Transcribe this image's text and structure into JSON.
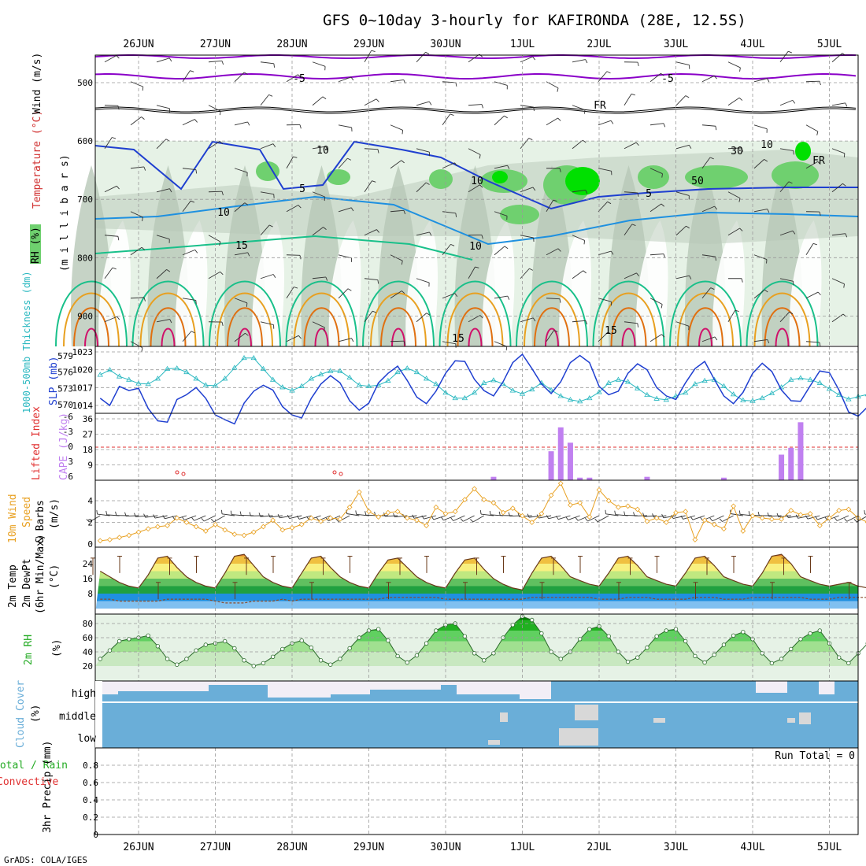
{
  "title": "GFS 0~10day 3-hourly for KAFIRONDA (28E, 12.5S)",
  "credit": "GrADS: COLA/IGES",
  "dates": [
    "26JUN",
    "27JUN",
    "28JUN",
    "29JUN",
    "30JUN",
    "1JUL",
    "2JUL",
    "3JUL",
    "4JUL",
    "5JUL"
  ],
  "colors": {
    "purple": "#8a00c8",
    "blue_dark": "#1f3fd0",
    "blue_mid": "#1e90e0",
    "teal": "#19c08a",
    "orange": "#e8a020",
    "orange_dark": "#e07010",
    "magenta": "#d0106a",
    "rh_light": "#e6f2e6",
    "rh_gray": "#b8c8b8",
    "rh_green": "#6fd06f",
    "rh_bright": "#00e000",
    "slp": "#1f3fd0",
    "thick": "#2ab8c0",
    "cape": "#c080f0",
    "li": "#e03030",
    "wind10": "#e8a020",
    "barb": "#6a4a2a",
    "cloud": "#6aaed8",
    "cloud_gray": "#d8d8d8"
  },
  "panel_labels": {
    "upper": {
      "wind": "Wind (m/s)",
      "temp": "Temperature (°C)",
      "rh": "RH (%)",
      "mb": "(m i l l i b a r s)"
    },
    "slp": {
      "thick": "1000-500mb Thickness (dm)",
      "slp": "SLP (mb)"
    },
    "cape": {
      "li": "Lifted Index",
      "cape": "CAPE (J/kg)"
    },
    "wind10": {
      "l1": "10m Wind",
      "l2": "Speed",
      "l3": "& Barbs",
      "l4": "(m/s)"
    },
    "temp2m": {
      "l1": "2m Temp",
      "l2": "2m DewPt",
      "l3": "(6hr Min/Max)",
      "l4": "(°C)"
    },
    "rh2m": {
      "l1": "2m RH",
      "l2": "(%)"
    },
    "cloud": {
      "l1": "Cloud Cover",
      "l2": "(%)"
    },
    "precip": {
      "l1": "Total / Rain",
      "l2": "Convective",
      "l3": "3hr Precip (mm)"
    }
  },
  "upper_levels": [
    "500",
    "600",
    "700",
    "800",
    "900"
  ],
  "contour_labels": [
    "-5",
    "-5",
    "FR",
    "FR",
    "5",
    "5",
    "10",
    "10",
    "15",
    "15",
    "15",
    "10",
    "10",
    "30",
    "50",
    "10"
  ],
  "slp_ticks": [
    "1023",
    "1020",
    "1017",
    "1014"
  ],
  "thick_ticks": [
    "579",
    "576",
    "573",
    "570"
  ],
  "li_ticks": [
    "-6",
    "-3",
    "0",
    "3",
    "6"
  ],
  "cape_ticks": [
    "36",
    "27",
    "18",
    "9"
  ],
  "wind10_ticks": [
    "4",
    "2",
    "0"
  ],
  "temp_ticks": [
    "24",
    "16",
    "8"
  ],
  "rh_ticks": [
    "80",
    "60",
    "40",
    "20"
  ],
  "cloud_levels": [
    "high",
    "middle",
    "low"
  ],
  "precip_ticks": [
    "0.8",
    "0.6",
    "0.4",
    "0.2",
    "0"
  ],
  "run_total": "Run Total = 0",
  "chart_data": [
    {
      "type": "line",
      "title": "SLP (mb)",
      "ylim": [
        1012,
        1023.5
      ],
      "x_step_hours": 3,
      "start": "25JUN 12Z",
      "values": [
        1015.2,
        1014,
        1017.2,
        1016.5,
        1016.9,
        1013.5,
        1011.4,
        1011.2,
        1015,
        1015.8,
        1017,
        1015.2,
        1012.4,
        1011.6,
        1010.9,
        1014.4,
        1016.4,
        1017.4,
        1016.6,
        1013.8,
        1012.4,
        1011.9,
        1015.2,
        1017.6,
        1019,
        1017.8,
        1014.8,
        1013.2,
        1014.4,
        1017.8,
        1019.4,
        1020.6,
        1018.2,
        1015.4,
        1014.3,
        1016.4,
        1019.4,
        1021.5,
        1021.4,
        1018.4,
        1016.5,
        1015.6,
        1018,
        1021.2,
        1022.6,
        1020.2,
        1017.6,
        1016,
        1018,
        1021.2,
        1022.4,
        1021.2,
        1017.2,
        1015.8,
        1016.4,
        1019.4,
        1021,
        1020,
        1017,
        1015.6,
        1015,
        1017.8,
        1020.2,
        1021.4,
        1018.4,
        1015.6,
        1014.3,
        1016.2,
        1019.4,
        1021.1,
        1019.7,
        1016.6,
        1014.8,
        1014.7,
        1017.3,
        1019.8,
        1019.5,
        1016.6,
        1012.9,
        1012.2,
        1013.8,
        1016.4
      ]
    },
    {
      "type": "line",
      "title": "1000-500mb Thickness (dm)",
      "ylim": [
        569,
        580
      ],
      "x_step_hours": 3,
      "start": "25JUN 12Z",
      "values": [
        575.5,
        576.4,
        575.2,
        574.6,
        573.9,
        573.8,
        574.8,
        576.6,
        576.7,
        576.0,
        574.8,
        573.6,
        573.5,
        574.8,
        576.8,
        578.6,
        578.6,
        576.6,
        574.6,
        573.2,
        572.6,
        573.4,
        574.8,
        575.6,
        576.2,
        576.2,
        575.0,
        573.6,
        573.4,
        573.6,
        574.4,
        576.0,
        576.7,
        576.0,
        574.8,
        573.8,
        572.2,
        571.2,
        571.2,
        572.2,
        574.0,
        574.5,
        573.8,
        572.6,
        572.0,
        572.8,
        574.0,
        572.7,
        571.6,
        570.9,
        570.6,
        571.2,
        572.3,
        574.0,
        574.6,
        574.2,
        573.0,
        571.8,
        571.1,
        570.9,
        571.6,
        572.2,
        573.8,
        574.4,
        574.6,
        573.4,
        571.9,
        570.8,
        570.7,
        571.2,
        572.1,
        573.2,
        574.6,
        574.9,
        574.6,
        574.0,
        572.9,
        571.8,
        571.0,
        571.5,
        571.9,
        573.2
      ]
    },
    {
      "type": "bar",
      "title": "CAPE (J/kg)",
      "ylim": [
        0,
        40
      ],
      "bars": [
        {
          "day": "30JUN",
          "hour": 15,
          "value": 2
        },
        {
          "day": "1JUL",
          "hour": 9,
          "value": 17
        },
        {
          "day": "1JUL",
          "hour": 12,
          "value": 31
        },
        {
          "day": "1JUL",
          "hour": 15,
          "value": 22
        },
        {
          "day": "1JUL",
          "hour": 18,
          "value": 1.5
        },
        {
          "day": "1JUL",
          "hour": 21,
          "value": 1.5
        },
        {
          "day": "2JUL",
          "hour": 15,
          "value": 2
        },
        {
          "day": "3JUL",
          "hour": 15,
          "value": 1.5
        },
        {
          "day": "4JUL",
          "hour": 9,
          "value": 15
        },
        {
          "day": "4JUL",
          "hour": 12,
          "value": 19
        },
        {
          "day": "4JUL",
          "hour": 15,
          "value": 34
        }
      ]
    },
    {
      "type": "line",
      "title": "10m Wind Speed (m/s)",
      "ylim": [
        0,
        5.6
      ],
      "x_step_hours": 3,
      "start": "25JUN 12Z",
      "values": [
        0.3,
        0.4,
        0.6,
        0.8,
        1.1,
        1.4,
        1.6,
        1.7,
        2.4,
        2.0,
        1.6,
        1.2,
        1.8,
        1.3,
        0.9,
        0.8,
        1.1,
        1.6,
        2.2,
        1.3,
        1.5,
        1.8,
        2.4,
        2.1,
        2.4,
        2.3,
        3.4,
        4.8,
        3.0,
        2.5,
        2.9,
        3.0,
        2.4,
        2.2,
        1.7,
        3.4,
        2.8,
        3.0,
        4.1,
        5.1,
        4.1,
        3.8,
        2.9,
        3.3,
        2.6,
        2.0,
        2.8,
        4.5,
        5.6,
        3.6,
        3.8,
        2.5,
        5.0,
        4.0,
        3.4,
        3.5,
        3.2,
        2.1,
        2.4,
        2.0,
        2.9,
        3.0,
        0.4,
        2.2,
        1.8,
        1.4,
        3.5,
        1.2,
        2.6,
        2.4,
        2.3,
        2.3,
        3.1,
        2.7,
        2.8,
        1.7,
        2.4,
        3.1,
        3.2,
        2.4,
        2.0,
        3.0
      ]
    },
    {
      "type": "area",
      "title": "2m Temp (°C)",
      "ylim": [
        0,
        32
      ],
      "x_step_hours": 3,
      "start": "25JUN 12Z",
      "values": [
        20,
        17,
        14,
        12,
        11,
        18,
        27,
        28,
        22,
        17,
        14,
        12,
        11,
        19,
        28,
        29,
        23,
        17,
        14,
        12,
        11,
        19,
        27,
        28,
        22,
        17,
        14,
        12,
        11,
        19,
        26,
        27,
        22,
        17,
        14,
        12,
        11,
        19,
        26,
        27,
        21,
        16,
        13,
        11,
        10,
        19,
        27,
        28,
        23,
        17,
        15,
        13,
        12,
        19,
        27,
        28,
        23,
        17,
        15,
        13,
        12,
        19,
        27,
        28,
        23,
        17,
        15,
        13,
        12,
        19,
        28,
        29,
        24,
        17,
        15,
        13,
        12,
        13,
        14,
        12,
        11,
        14
      ],
      "dewpoint": [
        5,
        5,
        4,
        4,
        4,
        4,
        4,
        5,
        5,
        5,
        5,
        5,
        4,
        3,
        3,
        3,
        4,
        4,
        4,
        5,
        4,
        5,
        5,
        5,
        5,
        5,
        5,
        5,
        5,
        5,
        6,
        6,
        6,
        6,
        6,
        6,
        5,
        5,
        5,
        5,
        5,
        5,
        5,
        5,
        5,
        6,
        6,
        6,
        6,
        6,
        6,
        6,
        5,
        5,
        5,
        6,
        6,
        6,
        5,
        5,
        5,
        5,
        6,
        6,
        6,
        5,
        5,
        5,
        6,
        6,
        6,
        6,
        6,
        6,
        5,
        5,
        5,
        6,
        6,
        6,
        6,
        7
      ]
    },
    {
      "type": "area",
      "title": "2m RH (%)",
      "ylim": [
        0,
        95
      ],
      "x_step_hours": 3,
      "start": "25JUN 12Z",
      "values": [
        30,
        42,
        55,
        58,
        60,
        63,
        48,
        30,
        22,
        30,
        42,
        50,
        52,
        55,
        45,
        28,
        20,
        24,
        33,
        44,
        52,
        56,
        46,
        28,
        22,
        30,
        45,
        60,
        70,
        72,
        56,
        34,
        25,
        35,
        52,
        70,
        78,
        80,
        62,
        38,
        28,
        38,
        60,
        78,
        90,
        85,
        66,
        40,
        30,
        40,
        58,
        72,
        76,
        62,
        40,
        26,
        32,
        46,
        62,
        70,
        72,
        55,
        34,
        25,
        36,
        50,
        63,
        68,
        58,
        38,
        24,
        30,
        44,
        58,
        66,
        70,
        52,
        32,
        24,
        38,
        52,
        64
      ]
    },
    {
      "type": "table",
      "title": "3hr Precip (mm)",
      "ylim": [
        0,
        1
      ],
      "values": [],
      "note": "Run Total = 0"
    }
  ]
}
